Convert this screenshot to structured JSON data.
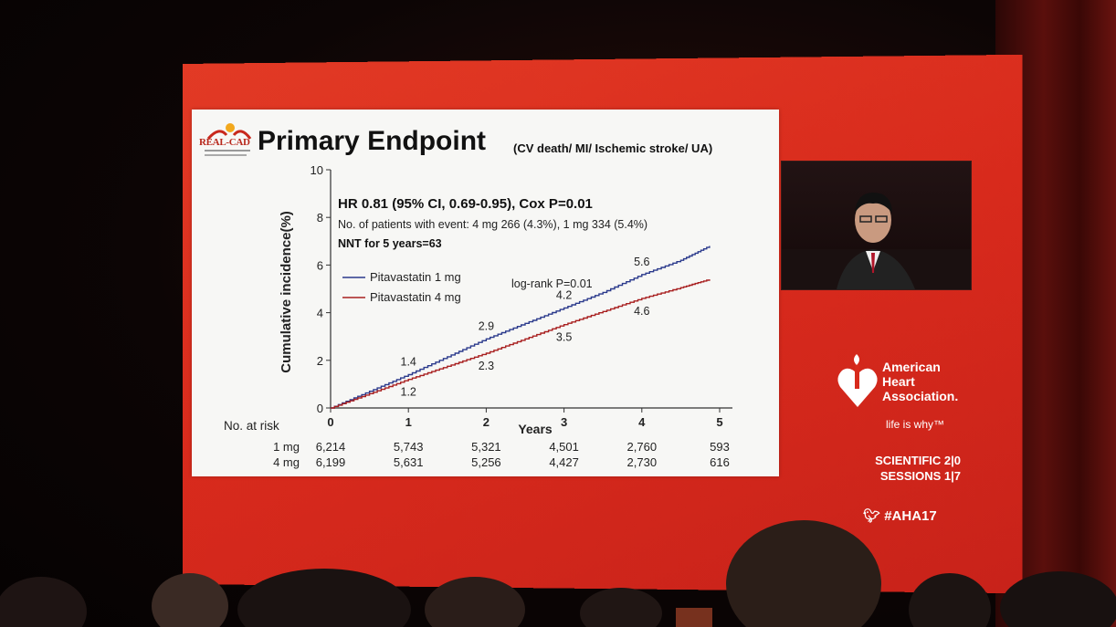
{
  "slide": {
    "logo_text": "REAL-CAD",
    "title": "Primary Endpoint",
    "subtitle": "(CV death/ MI/ Ischemic stroke/ UA)",
    "hr_text": "HR 0.81 (95% CI, 0.69-0.95), Cox P=0.01",
    "events_text": "No. of patients with event: 4 mg 266 (4.3%), 1 mg 334 (5.4%)",
    "nnt_text": "NNT for 5 years=63",
    "logrank_text": "log-rank P=0.01"
  },
  "chart_data": {
    "type": "line",
    "title": "Primary Endpoint",
    "xlabel": "Years",
    "ylabel": "Cumulative incidence(%)",
    "xlim": [
      0,
      5
    ],
    "ylim": [
      0,
      10
    ],
    "x_ticks": [
      0,
      1,
      2,
      3,
      4,
      5
    ],
    "y_ticks": [
      0,
      2,
      4,
      6,
      8,
      10
    ],
    "series": [
      {
        "name": "Pitavastatin 1 mg",
        "color": "#2b3a8c",
        "x": [
          0,
          0.5,
          1,
          1.5,
          2,
          2.5,
          3,
          3.5,
          4,
          4.5,
          4.87
        ],
        "y": [
          0,
          0.7,
          1.4,
          2.15,
          2.9,
          3.55,
          4.2,
          4.85,
          5.6,
          6.2,
          6.8
        ],
        "labels": [
          {
            "x": 1,
            "y": 1.4,
            "text": "1.4"
          },
          {
            "x": 2,
            "y": 2.9,
            "text": "2.9"
          },
          {
            "x": 3,
            "y": 4.2,
            "text": "4.2"
          },
          {
            "x": 4,
            "y": 5.6,
            "text": "5.6"
          }
        ]
      },
      {
        "name": "Pitavastatin 4 mg",
        "color": "#a82020",
        "x": [
          0,
          0.5,
          1,
          1.5,
          2,
          2.5,
          3,
          3.5,
          4,
          4.5,
          4.87
        ],
        "y": [
          0,
          0.6,
          1.2,
          1.75,
          2.3,
          2.9,
          3.5,
          4.05,
          4.6,
          5.05,
          5.4
        ],
        "labels": [
          {
            "x": 1,
            "y": 1.2,
            "text": "1.2"
          },
          {
            "x": 2,
            "y": 2.3,
            "text": "2.3"
          },
          {
            "x": 3,
            "y": 3.5,
            "text": "3.5"
          },
          {
            "x": 4,
            "y": 4.6,
            "text": "4.6"
          }
        ]
      }
    ],
    "risk_table": {
      "header": "No. at risk",
      "rows": [
        {
          "label": "1 mg",
          "values": [
            "6,214",
            "5,743",
            "5,321",
            "4,501",
            "2,760",
            "593"
          ]
        },
        {
          "label": "4 mg",
          "values": [
            "6,199",
            "5,631",
            "5,256",
            "4,427",
            "2,730",
            "616"
          ]
        }
      ]
    }
  },
  "sidebar": {
    "aha_text": "American\nHeart\nAssociation.",
    "tagline": "life is why™",
    "sessions_line1": "SCIENTIFIC 2|0",
    "sessions_line2": "SESSIONS 1|7",
    "hashtag": "#AHA17"
  },
  "colors": {
    "screen_red": "#d82a1c",
    "slide_bg": "#f7f7f5"
  }
}
